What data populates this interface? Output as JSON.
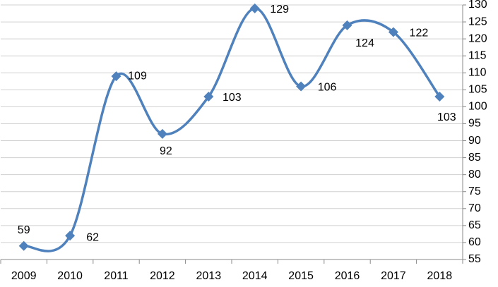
{
  "chart_data": {
    "type": "line",
    "categories": [
      "2009",
      "2010",
      "2011",
      "2012",
      "2013",
      "2014",
      "2015",
      "2016",
      "2017",
      "2018"
    ],
    "series": [
      {
        "name": null,
        "color": "#4f81bd",
        "values": [
          59,
          62,
          109,
          92,
          103,
          129,
          106,
          124,
          122,
          103
        ]
      }
    ],
    "ylim": [
      55,
      130
    ],
    "yticks": [
      55,
      60,
      65,
      70,
      75,
      80,
      85,
      90,
      95,
      100,
      105,
      110,
      115,
      120,
      125,
      130
    ],
    "grid": true,
    "smooth": true,
    "marker": "diamond",
    "y_axis_side": "right"
  }
}
